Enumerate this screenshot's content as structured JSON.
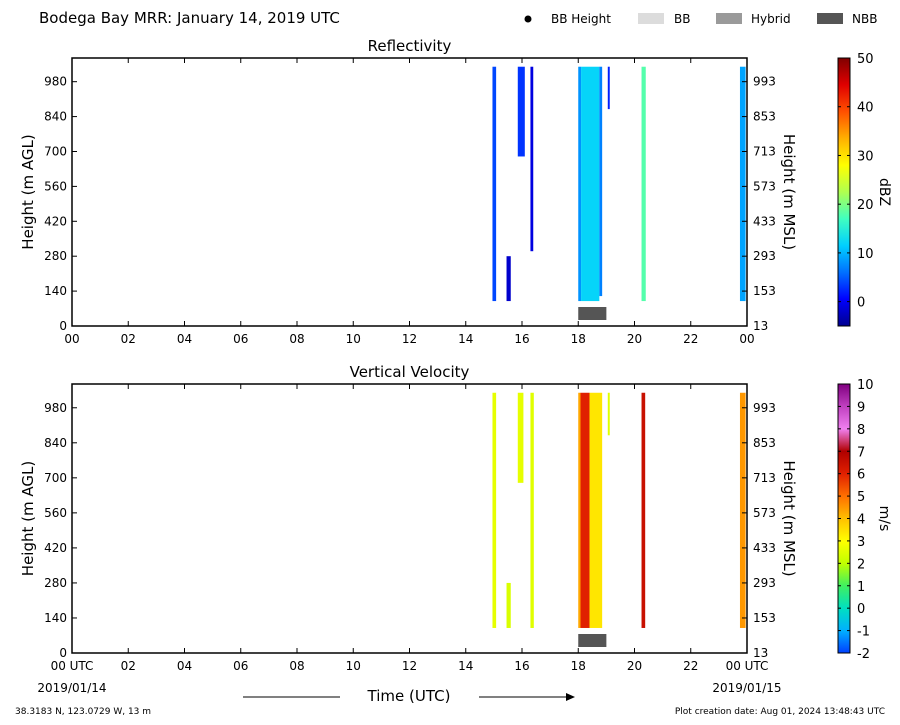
{
  "figure": {
    "title": "Bodega Bay MRR:  January 14, 2019 UTC",
    "legend": [
      {
        "label": "BB Height",
        "marker": "dot",
        "color": "#000000"
      },
      {
        "label": "BB",
        "marker": "box",
        "color": "#dcdcdc"
      },
      {
        "label": "Hybrid",
        "marker": "box",
        "color": "#9a9a9a"
      },
      {
        "label": "NBB",
        "marker": "box",
        "color": "#555555"
      }
    ],
    "xlabel": "Time (UTC)",
    "date_start": "2019/01/14",
    "date_end": "2019/01/15",
    "location": "38.3183 N, 123.0729 W, 13 m",
    "creation": "Plot creation date: Aug 01, 2024 13:48:43 UTC"
  },
  "chart_data": [
    {
      "type": "heatmap",
      "title": "Reflectivity",
      "xlabel": "",
      "ylabel": "Height (m AGL)",
      "ylabel_right": "Height (m MSL)",
      "colorbar_label": "dBZ",
      "x_ticks": [
        "00",
        "02",
        "04",
        "06",
        "08",
        "10",
        "12",
        "14",
        "16",
        "18",
        "20",
        "22",
        "00"
      ],
      "y_ticks": [
        0,
        140,
        280,
        420,
        560,
        700,
        840,
        980
      ],
      "y_ticks_right": [
        13,
        153,
        293,
        433,
        573,
        713,
        853,
        993
      ],
      "xlim": [
        0,
        24
      ],
      "ylim": [
        0,
        1075
      ],
      "colorbar_ticks": [
        0,
        10,
        20,
        30,
        40,
        50
      ],
      "colorbar_range": [
        -5,
        50
      ],
      "colors": [
        "#00008f",
        "#0000ff",
        "#0070ff",
        "#00d0ff",
        "#40ffc0",
        "#b0ff50",
        "#ffff00",
        "#ffb000",
        "#ff5000",
        "#e00000",
        "#800000"
      ],
      "swaths": [
        {
          "t0": 14.95,
          "t1": 15.08,
          "h0": 100,
          "h1": 1040,
          "value": 4
        },
        {
          "t0": 15.45,
          "t1": 15.6,
          "h0": 100,
          "h1": 280,
          "value": -2
        },
        {
          "t0": 15.85,
          "t1": 16.1,
          "h0": 680,
          "h1": 1040,
          "value": 3
        },
        {
          "t0": 16.3,
          "t1": 16.4,
          "h0": 300,
          "h1": 1040,
          "value": -1
        },
        {
          "t0": 18.0,
          "t1": 18.1,
          "h0": 100,
          "h1": 1040,
          "value": 8
        },
        {
          "t0": 18.1,
          "t1": 18.75,
          "h0": 100,
          "h1": 1040,
          "value": 12
        },
        {
          "t0": 18.75,
          "t1": 18.85,
          "h0": 120,
          "h1": 1040,
          "value": 7
        },
        {
          "t0": 19.05,
          "t1": 19.12,
          "h0": 870,
          "h1": 1040,
          "value": 2
        },
        {
          "t0": 20.25,
          "t1": 20.4,
          "h0": 100,
          "h1": 1040,
          "value": 18
        },
        {
          "t0": 23.75,
          "t1": 23.95,
          "h0": 100,
          "h1": 1040,
          "value": 9
        }
      ],
      "bands": [
        {
          "t0": 18.0,
          "t1": 19.0,
          "type": "NBB"
        }
      ]
    },
    {
      "type": "heatmap",
      "title": "Vertical Velocity",
      "xlabel": "Time (UTC)",
      "ylabel": "Height (m AGL)",
      "ylabel_right": "Height (m MSL)",
      "colorbar_label": "m/s",
      "x_ticks": [
        "00 UTC",
        "02",
        "04",
        "06",
        "08",
        "10",
        "12",
        "14",
        "16",
        "18",
        "20",
        "22",
        "00 UTC"
      ],
      "y_ticks": [
        0,
        140,
        280,
        420,
        560,
        700,
        840,
        980
      ],
      "y_ticks_right": [
        13,
        153,
        293,
        433,
        573,
        713,
        853,
        993
      ],
      "xlim": [
        0,
        24
      ],
      "ylim": [
        0,
        1075
      ],
      "colorbar_ticks": [
        -2,
        -1,
        0,
        1,
        2,
        3,
        4,
        5,
        6,
        7,
        8,
        9,
        10
      ],
      "colorbar_range": [
        -2,
        10
      ],
      "colors": [
        "#0040ff",
        "#00b0ff",
        "#00e0c0",
        "#40f060",
        "#c0ff00",
        "#ffff00",
        "#ffc000",
        "#ff7000",
        "#e02000",
        "#b00000",
        "#f080f0",
        "#c040c0",
        "#800080"
      ],
      "swaths": [
        {
          "t0": 14.95,
          "t1": 15.08,
          "h0": 100,
          "h1": 1040,
          "value": 2.6
        },
        {
          "t0": 15.45,
          "t1": 15.6,
          "h0": 100,
          "h1": 280,
          "value": 2.4
        },
        {
          "t0": 15.85,
          "t1": 16.05,
          "h0": 680,
          "h1": 1040,
          "value": 2.6
        },
        {
          "t0": 16.3,
          "t1": 16.42,
          "h0": 100,
          "h1": 1040,
          "value": 2.5
        },
        {
          "t0": 18.0,
          "t1": 18.08,
          "h0": 100,
          "h1": 1040,
          "value": 4.3
        },
        {
          "t0": 18.08,
          "t1": 18.4,
          "h0": 100,
          "h1": 1040,
          "value": 6.0
        },
        {
          "t0": 18.4,
          "t1": 18.85,
          "h0": 100,
          "h1": 1040,
          "value": 3.4
        },
        {
          "t0": 19.05,
          "t1": 19.12,
          "h0": 870,
          "h1": 1040,
          "value": 2.5
        },
        {
          "t0": 20.25,
          "t1": 20.38,
          "h0": 100,
          "h1": 1040,
          "value": 6.5
        },
        {
          "t0": 23.75,
          "t1": 23.95,
          "h0": 100,
          "h1": 1040,
          "value": 4.5
        }
      ],
      "bands": [
        {
          "t0": 18.0,
          "t1": 19.0,
          "type": "NBB"
        }
      ]
    }
  ]
}
